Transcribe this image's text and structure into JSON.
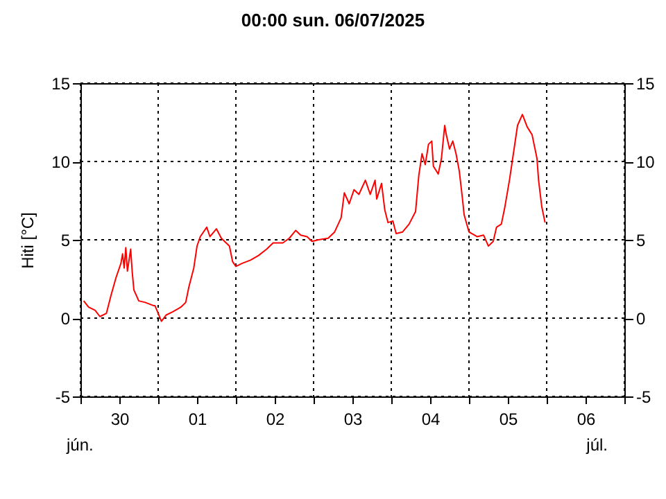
{
  "chart_data": {
    "type": "line",
    "title": "00:00   sun.  06/07/2025",
    "ylabel": "Hiti [°C]",
    "x": [
      "2025-06-30T01:00",
      "2025-06-30T02:30",
      "2025-06-30T04:30",
      "2025-06-30T06:00",
      "2025-06-30T08:00",
      "2025-06-30T09:30",
      "2025-06-30T11:00",
      "2025-06-30T12:30",
      "2025-06-30T13:00",
      "2025-06-30T13:30",
      "2025-06-30T14:00",
      "2025-06-30T14:30",
      "2025-06-30T15:30",
      "2025-06-30T16:00",
      "2025-06-30T16:30",
      "2025-06-30T18:00",
      "2025-06-30T20:00",
      "2025-06-30T22:30",
      "2025-06-30T23:00",
      "2025-07-01T00:00",
      "2025-07-01T01:00",
      "2025-07-01T02:30",
      "2025-07-01T04:30",
      "2025-07-01T07:00",
      "2025-07-01T08:30",
      "2025-07-01T09:30",
      "2025-07-01T11:00",
      "2025-07-01T12:00",
      "2025-07-01T13:00",
      "2025-07-01T15:00",
      "2025-07-01T16:00",
      "2025-07-01T18:00",
      "2025-07-01T19:30",
      "2025-07-01T22:00",
      "2025-07-01T23:00",
      "2025-07-02T00:00",
      "2025-07-02T02:00",
      "2025-07-02T04:30",
      "2025-07-02T07:00",
      "2025-07-02T09:30",
      "2025-07-02T11:30",
      "2025-07-02T14:30",
      "2025-07-02T16:30",
      "2025-07-02T18:30",
      "2025-07-02T20:00",
      "2025-07-02T22:00",
      "2025-07-02T23:30",
      "2025-07-03T01:30",
      "2025-07-03T04:30",
      "2025-07-03T06:30",
      "2025-07-03T08:30",
      "2025-07-03T09:30",
      "2025-07-03T11:00",
      "2025-07-03T12:30",
      "2025-07-03T14:00",
      "2025-07-03T16:00",
      "2025-07-03T17:30",
      "2025-07-03T19:00",
      "2025-07-03T19:30",
      "2025-07-03T21:00",
      "2025-07-03T22:00",
      "2025-07-03T23:00",
      "2025-07-04T00:30",
      "2025-07-04T01:30",
      "2025-07-04T03:30",
      "2025-07-04T05:30",
      "2025-07-04T07:30",
      "2025-07-04T08:30",
      "2025-07-04T09:30",
      "2025-07-04T10:30",
      "2025-07-04T11:30",
      "2025-07-04T12:30",
      "2025-07-04T13:00",
      "2025-07-04T14:30",
      "2025-07-04T15:30",
      "2025-07-04T16:30",
      "2025-07-04T17:00",
      "2025-07-04T18:00",
      "2025-07-04T19:00",
      "2025-07-04T20:00",
      "2025-07-04T21:00",
      "2025-07-04T22:00",
      "2025-07-04T22:30",
      "2025-07-05T00:00",
      "2025-07-05T02:30",
      "2025-07-05T04:30",
      "2025-07-05T06:00",
      "2025-07-05T07:30",
      "2025-07-05T08:30",
      "2025-07-05T10:00",
      "2025-07-05T11:00",
      "2025-07-05T12:30",
      "2025-07-05T13:30",
      "2025-07-05T15:00",
      "2025-07-05T16:30",
      "2025-07-05T18:00",
      "2025-07-05T19:30",
      "2025-07-05T21:00",
      "2025-07-05T21:30",
      "2025-07-05T22:30",
      "2025-07-05T23:30"
    ],
    "series": [
      {
        "color": "#ff0000",
        "values": [
          1.1,
          0.7,
          0.5,
          0.1,
          0.3,
          1.5,
          2.6,
          3.5,
          4.1,
          3.2,
          4.5,
          3.0,
          4.4,
          2.9,
          1.8,
          1.1,
          1.0,
          0.8,
          0.8,
          0.3,
          -0.2,
          0.2,
          0.4,
          0.7,
          1.0,
          2.0,
          3.2,
          4.6,
          5.2,
          5.8,
          5.2,
          5.7,
          5.1,
          4.6,
          3.6,
          3.3,
          3.5,
          3.7,
          4.0,
          4.4,
          4.8,
          4.8,
          5.1,
          5.6,
          5.3,
          5.2,
          4.9,
          5.0,
          5.1,
          5.5,
          6.4,
          8.0,
          7.3,
          8.2,
          7.9,
          8.8,
          7.9,
          8.8,
          7.6,
          8.6,
          6.9,
          6.1,
          6.2,
          5.4,
          5.5,
          6.0,
          6.8,
          9.1,
          10.5,
          9.8,
          11.1,
          11.3,
          9.7,
          9.2,
          10.2,
          12.3,
          11.7,
          10.8,
          11.3,
          10.5,
          9.4,
          7.6,
          6.6,
          5.5,
          5.2,
          5.3,
          4.6,
          4.9,
          5.8,
          6.0,
          7.0,
          8.8,
          10.2,
          12.3,
          13.0,
          12.2,
          11.7,
          10.2,
          8.8,
          7.1,
          6.1
        ]
      }
    ],
    "xlim": [
      "2025-06-30T00:00",
      "2025-07-07T00:00"
    ],
    "xticks": [
      {
        "value": "2025-06-30T00:00",
        "label": null
      },
      {
        "value": "2025-06-30T12:00",
        "label": "30"
      },
      {
        "value": "2025-07-01T00:00",
        "label": null
      },
      {
        "value": "2025-07-01T12:00",
        "label": "01"
      },
      {
        "value": "2025-07-02T00:00",
        "label": null
      },
      {
        "value": "2025-07-02T12:00",
        "label": "02"
      },
      {
        "value": "2025-07-03T00:00",
        "label": null
      },
      {
        "value": "2025-07-03T12:00",
        "label": "03"
      },
      {
        "value": "2025-07-04T00:00",
        "label": null
      },
      {
        "value": "2025-07-04T12:00",
        "label": "04"
      },
      {
        "value": "2025-07-05T00:00",
        "label": null
      },
      {
        "value": "2025-07-05T12:00",
        "label": "05"
      },
      {
        "value": "2025-07-06T00:00",
        "label": null
      },
      {
        "value": "2025-07-06T12:00",
        "label": "06"
      },
      {
        "value": "2025-07-07T00:00",
        "label": null
      }
    ],
    "ylim": [
      -5,
      15
    ],
    "yticks": [
      -5,
      0,
      5,
      10,
      15
    ],
    "y2lim": [
      -5,
      15
    ],
    "y2ticks": [
      -5,
      0,
      5,
      10,
      15
    ],
    "grid": true,
    "marker": "none",
    "line_style": "solid",
    "annotations": [
      "jún.",
      "júl."
    ]
  }
}
